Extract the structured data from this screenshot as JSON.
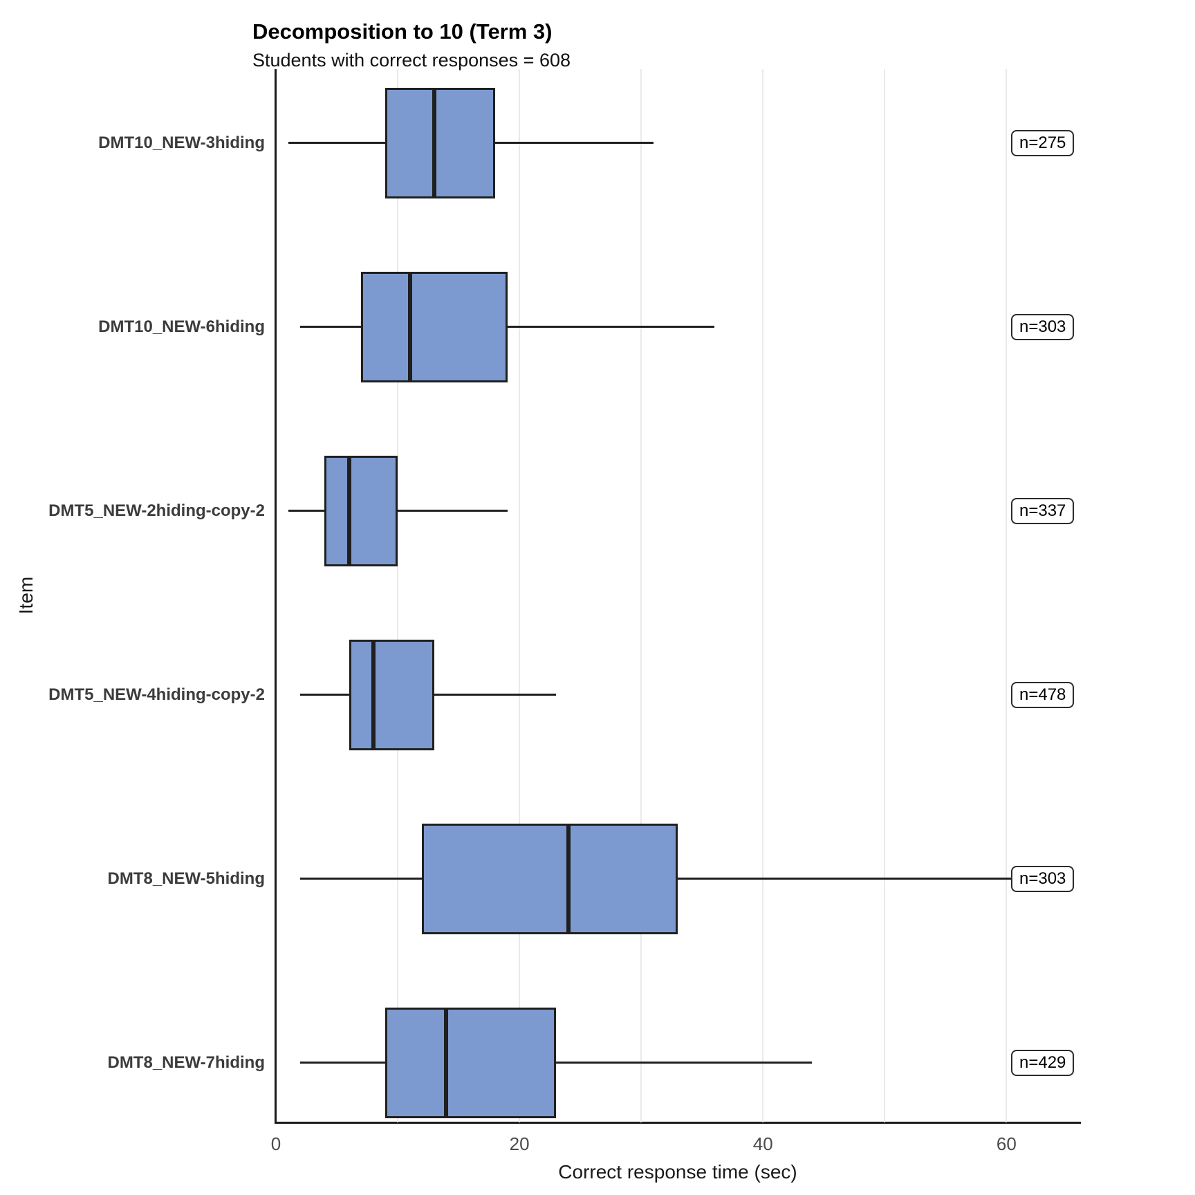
{
  "chart_data": {
    "type": "boxplot",
    "orientation": "horizontal",
    "title": "Decomposition to 10 (Term 3)",
    "subtitle": "Students with correct responses = 608",
    "xlabel": "Correct response time (sec)",
    "ylabel": "Item",
    "xlim": [
      0,
      66
    ],
    "x_ticks": [
      0,
      20,
      40,
      60
    ],
    "gridlines_every": 10,
    "grid": true,
    "legend_position": "none",
    "box_fill_color": "#7c9ad0",
    "box_stroke_color": "#1f1f1f",
    "items": [
      {
        "label": "DMT10_NEW-3hiding",
        "min": 1,
        "q1": 9,
        "median": 13,
        "q3": 18,
        "max": 31,
        "n_label": "n=275"
      },
      {
        "label": "DMT10_NEW-6hiding",
        "min": 2,
        "q1": 7,
        "median": 11,
        "q3": 19,
        "max": 36,
        "n_label": "n=303"
      },
      {
        "label": "DMT5_NEW-2hiding-copy-2",
        "min": 1,
        "q1": 4,
        "median": 6,
        "q3": 10,
        "max": 19,
        "n_label": "n=337"
      },
      {
        "label": "DMT5_NEW-4hiding-copy-2",
        "min": 2,
        "q1": 6,
        "median": 8,
        "q3": 13,
        "max": 23,
        "n_label": "n=478"
      },
      {
        "label": "DMT8_NEW-5hiding",
        "min": 2,
        "q1": 12,
        "median": 24,
        "q3": 33,
        "max": 62,
        "n_label": "n=303"
      },
      {
        "label": "DMT8_NEW-7hiding",
        "min": 2,
        "q1": 9,
        "median": 14,
        "q3": 23,
        "max": 44,
        "n_label": "n=429"
      }
    ]
  }
}
